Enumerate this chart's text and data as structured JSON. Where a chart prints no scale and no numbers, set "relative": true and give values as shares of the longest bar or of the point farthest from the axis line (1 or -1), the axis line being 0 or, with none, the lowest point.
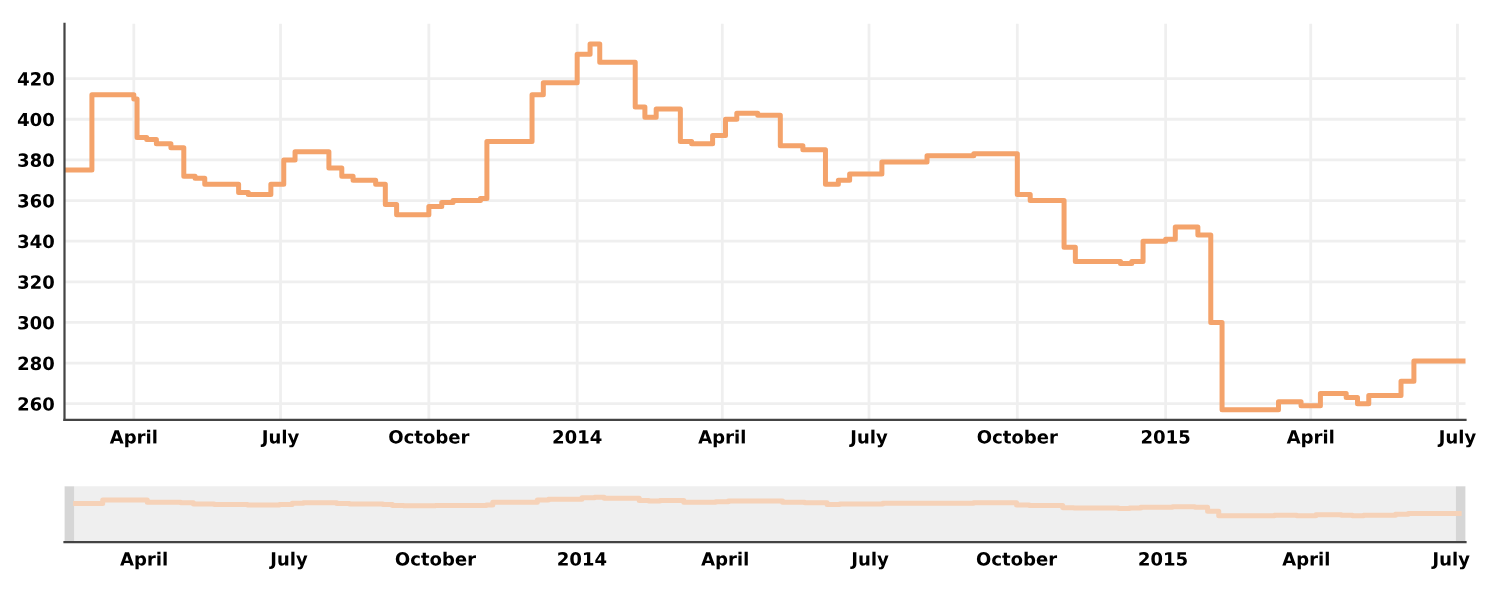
{
  "chart_data": [
    {
      "type": "step",
      "color": "#f4a36b",
      "grid": true,
      "marker": "none",
      "line_style": "solid",
      "x": [
        "2013-02-17",
        "2013-03-06",
        "2013-04-01",
        "2013-04-03",
        "2013-04-09",
        "2013-04-15",
        "2013-04-24",
        "2013-05-02",
        "2013-05-09",
        "2013-05-15",
        "2013-06-05",
        "2013-06-11",
        "2013-06-25",
        "2013-07-03",
        "2013-07-10",
        "2013-07-31",
        "2013-08-08",
        "2013-08-15",
        "2013-08-29",
        "2013-09-04",
        "2013-09-11",
        "2013-10-01",
        "2013-10-09",
        "2013-10-16",
        "2013-11-02",
        "2013-11-06",
        "2013-12-04",
        "2013-12-11",
        "2014-01-01",
        "2014-01-09",
        "2014-01-15",
        "2014-02-06",
        "2014-02-12",
        "2014-02-19",
        "2014-03-06",
        "2014-03-13",
        "2014-03-26",
        "2014-04-03",
        "2014-04-10",
        "2014-04-23",
        "2014-05-07",
        "2014-05-21",
        "2014-06-04",
        "2014-06-12",
        "2014-06-19",
        "2014-07-09",
        "2014-08-06",
        "2014-09-04",
        "2014-10-01",
        "2014-10-09",
        "2014-10-30",
        "2014-11-06",
        "2014-12-04",
        "2014-12-11",
        "2014-12-18",
        "2015-01-01",
        "2015-01-07",
        "2015-01-21",
        "2015-01-29",
        "2015-02-05",
        "2015-03-12",
        "2015-03-26",
        "2015-04-07",
        "2015-04-23",
        "2015-04-30",
        "2015-05-07",
        "2015-05-27",
        "2015-06-04",
        "2015-07-06"
      ],
      "values": [
        375,
        412,
        410,
        391,
        390,
        388,
        386,
        372,
        371,
        368,
        364,
        363,
        368,
        380,
        384,
        376,
        372,
        370,
        368,
        358,
        353,
        357,
        359,
        360,
        361,
        389,
        412,
        418,
        432,
        437,
        428,
        406,
        401,
        405,
        389,
        388,
        392,
        400,
        403,
        402,
        387,
        385,
        368,
        370,
        373,
        379,
        382,
        383,
        363,
        360,
        337,
        330,
        329,
        330,
        340,
        341,
        347,
        343,
        300,
        257,
        261,
        259,
        265,
        263,
        260,
        264,
        271,
        281,
        281
      ],
      "xlim": [
        "2013-02-17",
        "2015-07-06"
      ],
      "ylim": [
        252,
        447
      ],
      "xticks": [
        {
          "value": "2013-04-01",
          "label": "April"
        },
        {
          "value": "2013-07-01",
          "label": "July"
        },
        {
          "value": "2013-10-01",
          "label": "October"
        },
        {
          "value": "2014-01-01",
          "label": "2014"
        },
        {
          "value": "2014-04-01",
          "label": "April"
        },
        {
          "value": "2014-07-01",
          "label": "July"
        },
        {
          "value": "2014-10-01",
          "label": "October"
        },
        {
          "value": "2015-01-01",
          "label": "2015"
        },
        {
          "value": "2015-04-01",
          "label": "April"
        },
        {
          "value": "2015-07-01",
          "label": "July"
        }
      ],
      "yticks": [
        260,
        280,
        300,
        320,
        340,
        360,
        380,
        400,
        420
      ]
    },
    {
      "type": "step",
      "color": "#f6d2b8",
      "grid": false,
      "tick_labels": "x",
      "marker": "none",
      "line_style": "solid",
      "x": [
        "2013-02-17",
        "2013-03-06",
        "2013-04-01",
        "2013-04-03",
        "2013-04-09",
        "2013-04-15",
        "2013-04-24",
        "2013-05-02",
        "2013-05-09",
        "2013-05-15",
        "2013-06-05",
        "2013-06-11",
        "2013-06-25",
        "2013-07-03",
        "2013-07-10",
        "2013-07-31",
        "2013-08-08",
        "2013-08-15",
        "2013-08-29",
        "2013-09-04",
        "2013-09-11",
        "2013-10-01",
        "2013-10-09",
        "2013-10-16",
        "2013-11-02",
        "2013-11-06",
        "2013-12-04",
        "2013-12-11",
        "2014-01-01",
        "2014-01-09",
        "2014-01-15",
        "2014-02-06",
        "2014-02-12",
        "2014-02-19",
        "2014-03-06",
        "2014-03-13",
        "2014-03-26",
        "2014-04-03",
        "2014-04-10",
        "2014-04-23",
        "2014-05-07",
        "2014-05-21",
        "2014-06-04",
        "2014-06-12",
        "2014-06-19",
        "2014-07-09",
        "2014-08-06",
        "2014-09-04",
        "2014-10-01",
        "2014-10-09",
        "2014-10-30",
        "2014-11-06",
        "2014-12-04",
        "2014-12-11",
        "2014-12-18",
        "2015-01-01",
        "2015-01-07",
        "2015-01-21",
        "2015-01-29",
        "2015-02-05",
        "2015-03-12",
        "2015-03-26",
        "2015-04-07",
        "2015-04-23",
        "2015-04-30",
        "2015-05-07",
        "2015-05-27",
        "2015-06-04",
        "2015-07-06"
      ],
      "relative": true,
      "values": [
        0.86,
        0.94,
        0.94,
        0.89,
        0.89,
        0.89,
        0.88,
        0.85,
        0.85,
        0.84,
        0.83,
        0.83,
        0.84,
        0.87,
        0.88,
        0.86,
        0.85,
        0.85,
        0.84,
        0.82,
        0.81,
        0.82,
        0.82,
        0.82,
        0.83,
        0.89,
        0.94,
        0.96,
        0.99,
        1,
        0.98,
        0.93,
        0.92,
        0.93,
        0.89,
        0.89,
        0.9,
        0.92,
        0.92,
        0.92,
        0.89,
        0.88,
        0.84,
        0.85,
        0.85,
        0.87,
        0.87,
        0.88,
        0.83,
        0.82,
        0.77,
        0.76,
        0.75,
        0.76,
        0.78,
        0.78,
        0.79,
        0.78,
        0.69,
        0.59,
        0.6,
        0.59,
        0.61,
        0.6,
        0.59,
        0.6,
        0.62,
        0.64,
        0.64
      ],
      "xlim": [
        "2013-02-10",
        "2015-07-10"
      ],
      "xticks": [
        {
          "value": "2013-04-01",
          "label": "April"
        },
        {
          "value": "2013-07-01",
          "label": "July"
        },
        {
          "value": "2013-10-01",
          "label": "October"
        },
        {
          "value": "2014-01-01",
          "label": "2014"
        },
        {
          "value": "2014-04-01",
          "label": "April"
        },
        {
          "value": "2014-07-01",
          "label": "July"
        },
        {
          "value": "2014-10-01",
          "label": "October"
        },
        {
          "value": "2015-01-01",
          "label": "2015"
        },
        {
          "value": "2015-04-01",
          "label": "April"
        },
        {
          "value": "2015-07-01",
          "label": "July"
        }
      ]
    }
  ]
}
